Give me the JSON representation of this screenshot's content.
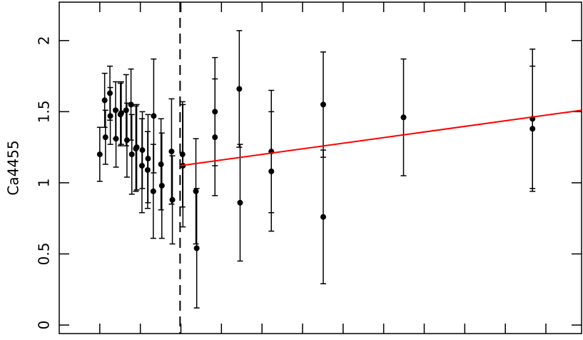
{
  "chart_data": {
    "type": "scatter",
    "y_label": "Ca4455",
    "xlim": [
      0,
      12.88
    ],
    "ylim": [
      -0.06,
      2.27
    ],
    "xticks": [
      1,
      2,
      3,
      4,
      5,
      6,
      7,
      8,
      9,
      10,
      11,
      12
    ],
    "yticks": [
      0,
      0.5,
      1,
      1.5,
      2
    ],
    "vline": 2.98,
    "series": [
      {
        "color": "#000000",
        "x": [
          1.0,
          1.12,
          1.14,
          1.25,
          1.26,
          1.39,
          1.4,
          1.51,
          1.53,
          1.65,
          1.67,
          1.77,
          1.79,
          1.89,
          1.91,
          2.04,
          2.05,
          2.18,
          2.19,
          2.32,
          2.33,
          2.51,
          2.53,
          2.77,
          2.79,
          3.04,
          3.05,
          3.37,
          3.39,
          3.84,
          3.84,
          4.44,
          4.46,
          5.23,
          5.23,
          6.51,
          6.51,
          8.49,
          11.67,
          11.67
        ],
        "values": [
          1.2,
          1.58,
          1.32,
          1.63,
          1.47,
          1.51,
          1.31,
          1.48,
          1.49,
          1.51,
          1.3,
          1.55,
          1.2,
          1.24,
          1.25,
          1.12,
          1.23,
          1.09,
          1.17,
          0.94,
          1.47,
          1.13,
          0.98,
          1.22,
          0.88,
          1.2,
          1.12,
          0.94,
          0.54,
          1.5,
          1.32,
          1.66,
          0.86,
          1.22,
          1.08,
          1.55,
          0.76,
          1.46,
          1.45,
          1.38
        ],
        "errors": [
          0.19,
          0.19,
          0.19,
          0.19,
          0.2,
          0.2,
          0.2,
          0.22,
          0.22,
          0.25,
          0.26,
          0.25,
          0.28,
          0.3,
          0.3,
          0.33,
          0.27,
          0.27,
          0.31,
          0.33,
          0.4,
          0.32,
          0.37,
          0.37,
          0.31,
          0.37,
          0.43,
          0.37,
          0.42,
          0.38,
          0.41,
          0.41,
          0.41,
          0.43,
          0.42,
          0.37,
          0.47,
          0.41,
          0.49,
          0.44
        ]
      }
    ],
    "fit": {
      "color": "#ff0000",
      "x": [
        2.98,
        12.88
      ],
      "y": [
        1.12,
        1.51
      ]
    }
  }
}
